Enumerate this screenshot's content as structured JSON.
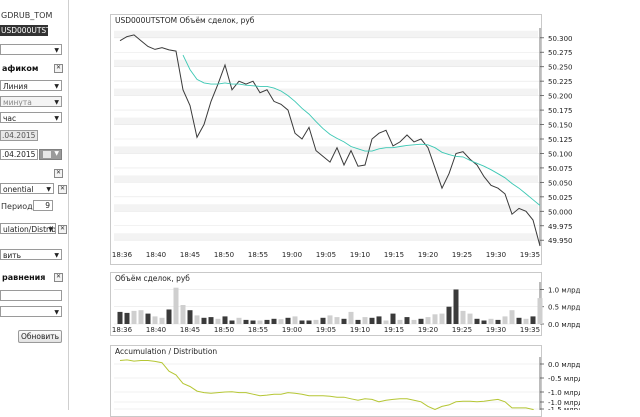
{
  "left_panel": {
    "instruments": [
      "GDRUB_TOM",
      "USD000UTSTOM"
    ],
    "section_chart_title": "афиком",
    "chart_type_value": "Линия",
    "interval_unit_value": "минута",
    "interval_value": "час",
    "date_from_value": ".04.2015",
    "date_to_value": ".04.2015",
    "indicator_type_value": "onential",
    "period_label": "Период :",
    "period_value": "9",
    "indicator2_value": "ulation/Distrib",
    "action_value": "вить",
    "compare_title": "равнения",
    "refresh_button": "Обновить",
    "close_glyph": "✕"
  },
  "price_chart": {
    "title": "USD000UTSTOM  Объём сделок, руб",
    "y_ticks": [
      "50.300",
      "50.275",
      "50.250",
      "50.225",
      "50.200",
      "50.175",
      "50.150",
      "50.125",
      "50.100",
      "50.075",
      "50.050",
      "50.025",
      "50.000",
      "49.975",
      "49.950"
    ],
    "x_ticks": [
      "18:36",
      "18:40",
      "18:45",
      "18:50",
      "18:55",
      "19:00",
      "19:05",
      "19:10",
      "19:15",
      "19:20",
      "19:25",
      "19:30",
      "19:35"
    ]
  },
  "volume_chart": {
    "title": "Объём сделок, руб",
    "y_ticks": [
      "1.0 млрд",
      "0.5 млрд",
      "0.0 млрд"
    ],
    "x_ticks": [
      "18:36",
      "18:40",
      "18:45",
      "18:50",
      "18:55",
      "19:00",
      "19:05",
      "19:10",
      "19:15",
      "19:20",
      "19:25",
      "19:30",
      "19:35"
    ]
  },
  "ad_chart": {
    "title": "Accumulation / Distribution",
    "y_ticks": [
      "0.0 млрд",
      "-0.5 млрд",
      "-1.0 млрд",
      "-1.0 млрд",
      "-1.5 млрд"
    ]
  },
  "colors": {
    "price_line": "#3a3a3a",
    "ema_line": "#3cc8b4",
    "ad_line": "#b5c634",
    "volume_dark": "#3a3a3a",
    "volume_light": "#cfcfcf"
  },
  "chart_data": [
    {
      "type": "line",
      "title": "USD000UTSTOM  Объём сделок, руб",
      "x": [
        "18:36",
        "18:37",
        "18:38",
        "18:39",
        "18:40",
        "18:41",
        "18:42",
        "18:43",
        "18:44",
        "18:45",
        "18:46",
        "18:47",
        "18:48",
        "18:49",
        "18:50",
        "18:51",
        "18:52",
        "18:53",
        "18:54",
        "18:55",
        "18:56",
        "18:57",
        "18:58",
        "18:59",
        "19:00",
        "19:01",
        "19:02",
        "19:03",
        "19:04",
        "19:05",
        "19:06",
        "19:07",
        "19:08",
        "19:09",
        "19:10",
        "19:11",
        "19:12",
        "19:13",
        "19:14",
        "19:15",
        "19:16",
        "19:17",
        "19:18",
        "19:19",
        "19:20",
        "19:21",
        "19:22",
        "19:23",
        "19:24",
        "19:25",
        "19:26",
        "19:27",
        "19:28",
        "19:29",
        "19:30",
        "19:31",
        "19:32",
        "19:33",
        "19:34",
        "19:35",
        "19:36"
      ],
      "series": [
        {
          "values": [
            50.295,
            50.302,
            50.305,
            50.295,
            50.285,
            50.28,
            50.283,
            50.279,
            50.277,
            50.21,
            50.183,
            50.128,
            50.15,
            50.19,
            50.22,
            50.253,
            50.21,
            50.225,
            50.22,
            50.225,
            50.205,
            50.21,
            50.19,
            50.185,
            50.175,
            50.135,
            50.125,
            50.145,
            50.105,
            50.095,
            50.085,
            50.11,
            50.08,
            50.105,
            50.078,
            50.08,
            50.125,
            50.135,
            50.14,
            50.113,
            50.12,
            50.132,
            50.12,
            50.125,
            50.11,
            50.075,
            50.04,
            50.065,
            50.1,
            50.103,
            50.09,
            50.08,
            50.06,
            50.045,
            50.04,
            50.03,
            49.995,
            50.005,
            50.0,
            49.985,
            49.94
          ]
        },
        {
          "values": [
            null,
            null,
            null,
            null,
            null,
            null,
            null,
            null,
            null,
            50.27,
            50.245,
            50.228,
            50.222,
            50.22,
            50.22,
            50.222,
            50.22,
            50.22,
            50.218,
            50.217,
            50.216,
            50.216,
            50.213,
            50.208,
            50.2,
            50.19,
            50.178,
            50.168,
            50.155,
            50.143,
            50.133,
            50.126,
            50.12,
            50.112,
            50.108,
            50.104,
            50.104,
            50.108,
            50.11,
            50.11,
            50.112,
            50.114,
            50.115,
            50.116,
            50.115,
            50.11,
            50.102,
            50.098,
            50.095,
            50.094,
            50.088,
            50.083,
            50.078,
            50.072,
            50.065,
            50.058,
            50.048,
            50.04,
            50.03,
            50.02,
            50.01
          ]
        }
      ],
      "ylim": [
        49.94,
        50.31
      ]
    },
    {
      "type": "bar",
      "title": "Объём сделок, руб",
      "x": [
        "18:36",
        "18:37",
        "18:38",
        "18:39",
        "18:40",
        "18:41",
        "18:42",
        "18:43",
        "18:44",
        "18:45",
        "18:46",
        "18:47",
        "18:48",
        "18:49",
        "18:50",
        "18:51",
        "18:52",
        "18:53",
        "18:54",
        "18:55",
        "18:56",
        "18:57",
        "18:58",
        "18:59",
        "19:00",
        "19:01",
        "19:02",
        "19:03",
        "19:04",
        "19:05",
        "19:06",
        "19:07",
        "19:08",
        "19:09",
        "19:10",
        "19:11",
        "19:12",
        "19:13",
        "19:14",
        "19:15",
        "19:16",
        "19:17",
        "19:18",
        "19:19",
        "19:20",
        "19:21",
        "19:22",
        "19:23",
        "19:24",
        "19:25",
        "19:26",
        "19:27",
        "19:28",
        "19:29",
        "19:30",
        "19:31",
        "19:32",
        "19:33",
        "19:34",
        "19:35",
        "19:36"
      ],
      "values": [
        0.35,
        0.32,
        0.38,
        0.4,
        0.3,
        0.22,
        0.18,
        0.42,
        1.05,
        0.55,
        0.4,
        0.25,
        0.18,
        0.2,
        0.15,
        0.22,
        0.1,
        0.18,
        0.12,
        0.1,
        0.1,
        0.12,
        0.15,
        0.14,
        0.18,
        0.22,
        0.1,
        0.1,
        0.12,
        0.18,
        0.25,
        0.2,
        0.15,
        0.35,
        0.12,
        0.2,
        0.18,
        0.22,
        0.1,
        0.3,
        0.12,
        0.2,
        0.12,
        0.15,
        0.2,
        0.28,
        0.3,
        0.5,
        1.0,
        0.38,
        0.3,
        0.15,
        0.1,
        0.15,
        0.12,
        0.22,
        0.4,
        0.18,
        0.15,
        0.22,
        0.75
      ],
      "dark": [
        1,
        1,
        0,
        0,
        1,
        0,
        0,
        1,
        0,
        0,
        1,
        0,
        1,
        1,
        0,
        1,
        1,
        0,
        1,
        1,
        0,
        1,
        1,
        0,
        1,
        0,
        1,
        1,
        0,
        1,
        0,
        0,
        1,
        0,
        1,
        0,
        1,
        1,
        0,
        1,
        0,
        1,
        0,
        1,
        0,
        0,
        0,
        1,
        1,
        0,
        0,
        1,
        1,
        0,
        1,
        0,
        0,
        1,
        0,
        1,
        0
      ],
      "ylim": [
        0,
        1.1
      ]
    },
    {
      "type": "line",
      "title": "Accumulation / Distribution",
      "x": [
        "18:36",
        "18:37",
        "18:38",
        "18:39",
        "18:40",
        "18:41",
        "18:42",
        "18:43",
        "18:44",
        "18:45",
        "18:46",
        "18:47",
        "18:48",
        "18:49",
        "18:50",
        "18:51",
        "18:52",
        "18:53",
        "18:54",
        "18:55",
        "18:56",
        "18:57",
        "18:58",
        "18:59",
        "19:00",
        "19:01",
        "19:02",
        "19:03",
        "19:04",
        "19:05",
        "19:06",
        "19:07",
        "19:08",
        "19:09",
        "19:10",
        "19:11",
        "19:12",
        "19:13",
        "19:14",
        "19:15",
        "19:16",
        "19:17",
        "19:18",
        "19:19",
        "19:20",
        "19:21",
        "19:22",
        "19:23",
        "19:24",
        "19:25",
        "19:26",
        "19:27",
        "19:28",
        "19:29",
        "19:30",
        "19:31",
        "19:32",
        "19:33",
        "19:34",
        "19:35",
        "19:36"
      ],
      "values": [
        0.05,
        0.07,
        0.03,
        0.05,
        0.05,
        0.02,
        -0.02,
        -0.3,
        -0.42,
        -0.7,
        -0.8,
        -0.95,
        -1.0,
        -1.02,
        -1.0,
        -0.98,
        -0.97,
        -1.0,
        -1.0,
        -1.05,
        -1.1,
        -1.08,
        -1.05,
        -1.05,
        -1.0,
        -1.02,
        -1.05,
        -1.1,
        -1.1,
        -1.1,
        -1.12,
        -1.15,
        -1.15,
        -1.2,
        -1.25,
        -1.2,
        -1.22,
        -1.3,
        -1.25,
        -1.22,
        -1.2,
        -1.2,
        -1.25,
        -1.3,
        -1.45,
        -1.55,
        -1.45,
        -1.4,
        -1.3,
        -1.28,
        -1.28,
        -1.3,
        -1.28,
        -1.25,
        -1.22,
        -1.3,
        -1.5,
        -1.5,
        -1.5,
        -1.55,
        -1.85
      ],
      "ylim": [
        -1.6,
        0.1
      ]
    }
  ]
}
